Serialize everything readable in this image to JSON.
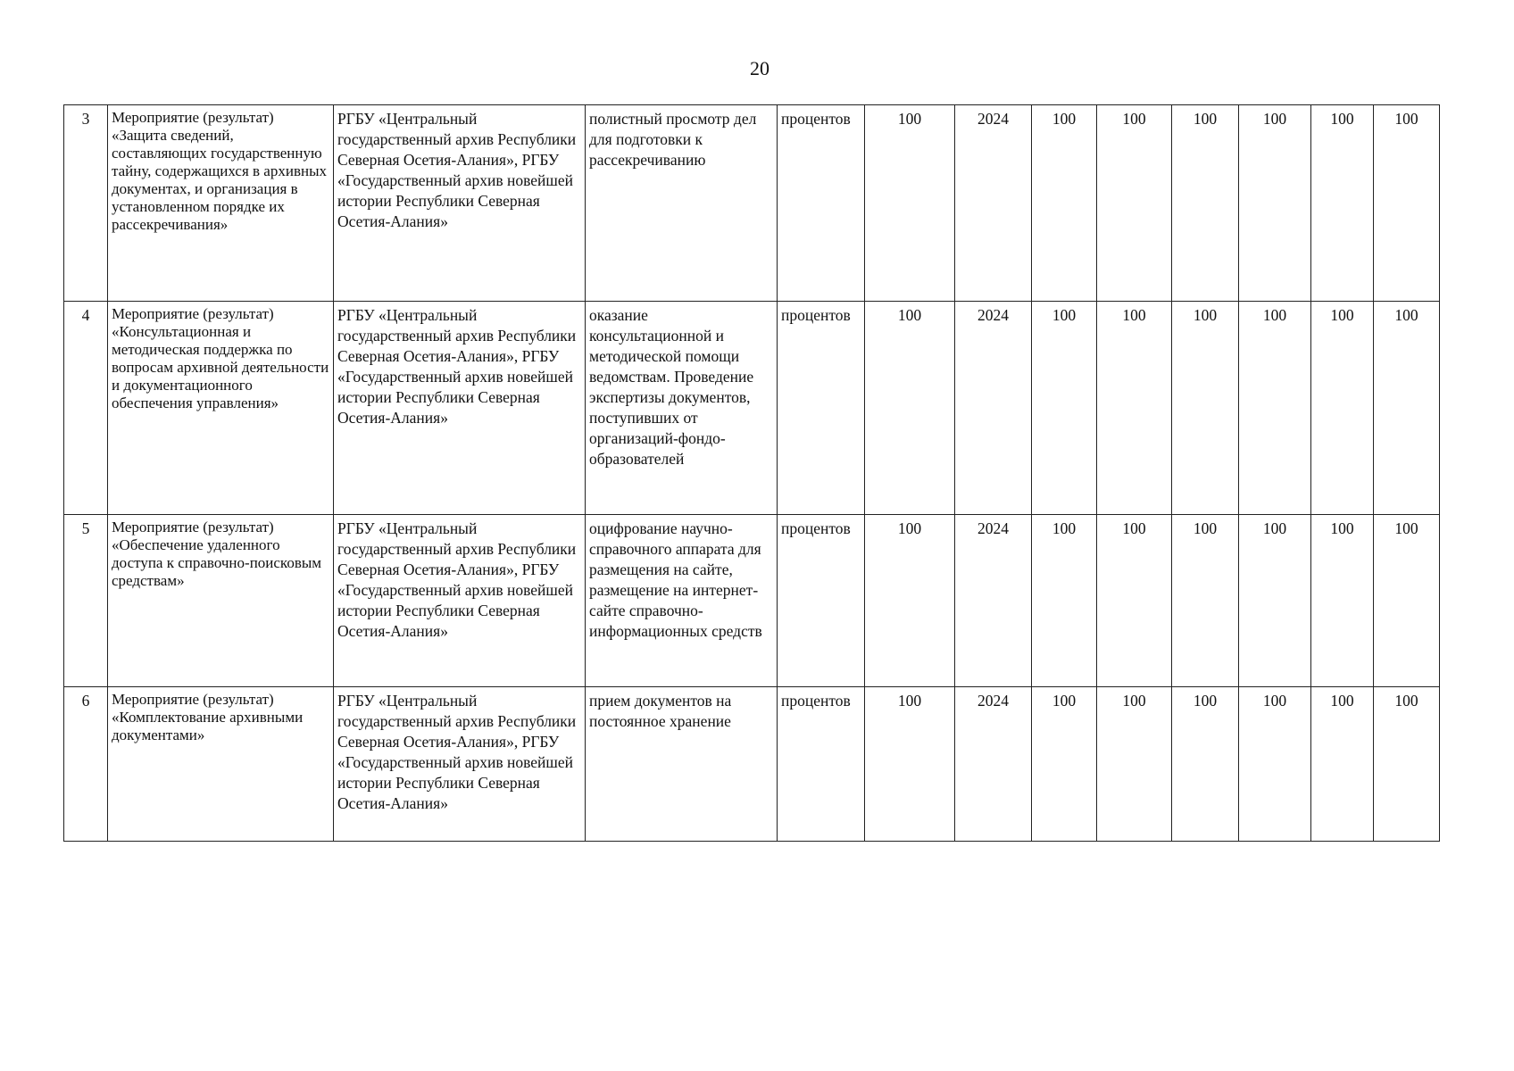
{
  "page_number": "20",
  "rows": [
    {
      "num": "3",
      "name": "Мероприятие (результат) «Защита сведений, составляющих государственную тайну, содержащихся в архивных документах, и организация в установленном порядке их рассекречивания»",
      "responsible": "РГБУ «Центральный государственный архив Республики Северная Осетия-Алания», РГБУ «Государственный архив новейшей истории Республики Северная Осетия-Алания»",
      "note": "полистный просмотр дел для подготовки к рассекречиванию",
      "unit": "процентов",
      "base": "100",
      "year": "2024",
      "v1": "100",
      "v2": "100",
      "v3": "100",
      "v4": "100",
      "v5": "100",
      "v6": "100"
    },
    {
      "num": "4",
      "name": "Мероприятие (результат) «Консультационная и методическая поддержка по вопросам архивной деятельности и документационного обеспечения управления»",
      "responsible": "РГБУ «Центральный государственный архив Республики Северная Осетия-Алания», РГБУ «Государственный архив новейшей истории Республики Северная Осетия-Алания»",
      "note": "оказание консультационной и методической помощи ведомствам. Проведение экспертизы документов, поступивших от организаций-фондо-образователей",
      "unit": "процентов",
      "base": "100",
      "year": "2024",
      "v1": "100",
      "v2": "100",
      "v3": "100",
      "v4": "100",
      "v5": "100",
      "v6": "100"
    },
    {
      "num": "5",
      "name": "Мероприятие (результат) «Обеспечение удаленного доступа к справочно-поисковым средствам»",
      "responsible": "РГБУ «Центральный государственный архив Республики Северная Осетия-Алания», РГБУ «Государственный архив новейшей истории Республики Северная Осетия-Алания»",
      "note": "оцифрование научно-справочного аппарата для размещения на сайте, размещение на интернет-сайте справочно-информационных средств",
      "unit": "процентов",
      "base": "100",
      "year": "2024",
      "v1": "100",
      "v2": "100",
      "v3": "100",
      "v4": "100",
      "v5": "100",
      "v6": "100"
    },
    {
      "num": "6",
      "name": "Мероприятие (результат) «Комплектование архивными документами»",
      "responsible": "РГБУ «Центральный государственный архив Республики Северная Осетия-Алания», РГБУ «Государственный архив новейшей истории Республики Северная Осетия-Алания»",
      "note": "прием документов на постоянное хранение",
      "unit": "процентов",
      "base": "100",
      "year": "2024",
      "v1": "100",
      "v2": "100",
      "v3": "100",
      "v4": "100",
      "v5": "100",
      "v6": "100"
    }
  ]
}
